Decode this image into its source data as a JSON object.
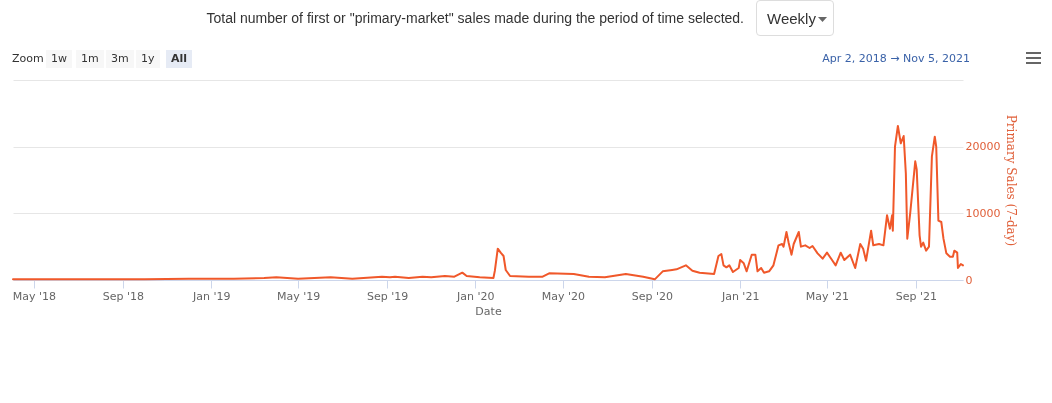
{
  "chart_data": {
    "type": "line",
    "title": "Total number of first or \"primary-market\" sales made during the period of time selected.",
    "xlabel": "Date",
    "ylabel": "Primary Sales (7-day)",
    "annotations": [
      "Zoom",
      "1w",
      "1m",
      "3m",
      "1y",
      "All",
      "Weekly",
      "Apr 2, 2018 → Nov 5, 2021"
    ],
    "xlim": [
      "2018-04-02",
      "2021-11-05"
    ],
    "xticks": [
      {
        "value": "2018-05-01",
        "label": "May '18"
      },
      {
        "value": "2018-09-01",
        "label": "Sep '18"
      },
      {
        "value": "2019-01-01",
        "label": "Jan '19"
      },
      {
        "value": "2019-05-01",
        "label": "May '19"
      },
      {
        "value": "2019-09-01",
        "label": "Sep '19"
      },
      {
        "value": "2020-01-01",
        "label": "Jan '20"
      },
      {
        "value": "2020-05-01",
        "label": "May '20"
      },
      {
        "value": "2020-09-01",
        "label": "Sep '20"
      },
      {
        "value": "2021-01-01",
        "label": "Jan '21"
      },
      {
        "value": "2021-05-01",
        "label": "May '21"
      },
      {
        "value": "2021-09-01",
        "label": "Sep '21"
      }
    ],
    "ylim": [
      0,
      30000
    ],
    "yticks": [
      0,
      10000,
      20000,
      {
        "value": 30000,
        "label": null
      }
    ],
    "grid": "y",
    "series": [
      {
        "color": "#f0582a",
        "x": [
          "2018-04-02",
          "2018-06-01",
          "2018-08-01",
          "2018-10-01",
          "2018-12-01",
          "2019-02-01",
          "2019-03-15",
          "2019-04-01",
          "2019-05-01",
          "2019-06-15",
          "2019-07-15",
          "2019-08-25",
          "2019-09-05",
          "2019-09-12",
          "2019-10-01",
          "2019-10-20",
          "2019-11-01",
          "2019-11-20",
          "2019-12-03",
          "2019-12-14",
          "2019-12-20",
          "2020-01-07",
          "2020-01-26",
          "2020-01-28",
          "2020-02-01",
          "2020-02-05",
          "2020-02-09",
          "2020-02-12",
          "2020-02-18",
          "2020-03-15",
          "2020-04-03",
          "2020-04-12",
          "2020-05-16",
          "2020-06-06",
          "2020-06-28",
          "2020-07-27",
          "2020-08-20",
          "2020-09-05",
          "2020-09-16",
          "2020-09-29",
          "2020-10-05",
          "2020-10-18",
          "2020-10-27",
          "2020-11-06",
          "2020-11-26",
          "2020-12-02",
          "2020-12-06",
          "2020-12-09",
          "2020-12-13",
          "2020-12-17",
          "2020-12-22",
          "2020-12-26",
          "2020-12-30",
          "2021-01-01",
          "2021-01-06",
          "2021-01-10",
          "2021-01-17",
          "2021-01-22",
          "2021-01-25",
          "2021-01-30",
          "2021-02-03",
          "2021-02-10",
          "2021-02-16",
          "2021-02-23",
          "2021-02-28",
          "2021-03-02",
          "2021-03-06",
          "2021-03-09",
          "2021-03-13",
          "2021-03-16",
          "2021-03-23",
          "2021-03-26",
          "2021-04-01",
          "2021-04-07",
          "2021-04-11",
          "2021-04-18",
          "2021-04-25",
          "2021-05-01",
          "2021-05-08",
          "2021-05-13",
          "2021-05-20",
          "2021-05-25",
          "2021-06-02",
          "2021-06-09",
          "2021-06-16",
          "2021-06-20",
          "2021-06-24",
          "2021-07-01",
          "2021-07-04",
          "2021-07-12",
          "2021-07-18",
          "2021-07-23",
          "2021-07-27",
          "2021-07-30",
          "2021-07-31",
          "2021-08-03",
          "2021-08-07",
          "2021-08-11",
          "2021-08-15",
          "2021-08-18",
          "2021-08-20",
          "2021-08-24",
          "2021-08-31",
          "2021-09-02",
          "2021-09-06",
          "2021-09-08",
          "2021-09-11",
          "2021-09-15",
          "2021-09-19",
          "2021-09-23",
          "2021-09-27",
          "2021-09-29",
          "2021-10-02",
          "2021-10-06",
          "2021-10-09",
          "2021-10-13",
          "2021-10-18",
          "2021-10-22",
          "2021-10-24",
          "2021-10-28",
          "2021-10-29",
          "2021-11-02",
          "2021-11-05"
        ],
        "values": [
          100,
          100,
          100,
          100,
          200,
          200,
          300,
          400,
          200,
          400,
          200,
          500,
          400,
          500,
          300,
          500,
          400,
          600,
          500,
          1100,
          600,
          400,
          300,
          1400,
          4700,
          4100,
          3600,
          1500,
          600,
          500,
          500,
          1000,
          900,
          500,
          400,
          900,
          500,
          100,
          1300,
          1500,
          1600,
          2200,
          1400,
          1100,
          900,
          3600,
          3900,
          2200,
          1900,
          2200,
          1200,
          1500,
          1800,
          3000,
          2500,
          1300,
          3800,
          3800,
          1300,
          1800,
          1100,
          1300,
          2200,
          5200,
          5400,
          5000,
          7200,
          5600,
          3800,
          5400,
          7200,
          5000,
          5200,
          4800,
          5100,
          4000,
          3200,
          4100,
          3000,
          2200,
          4100,
          3000,
          3800,
          1800,
          5400,
          4700,
          2900,
          7400,
          5200,
          5400,
          5200,
          9700,
          7700,
          9700,
          7400,
          20000,
          23100,
          20500,
          21600,
          16000,
          6200,
          10000,
          17800,
          16600,
          6700,
          5000,
          5600,
          4400,
          5000,
          18500,
          21500,
          20000,
          8900,
          8700,
          6200,
          4000,
          3500,
          3500,
          4400,
          4100,
          1800,
          2400,
          2200
        ]
      }
    ]
  }
}
